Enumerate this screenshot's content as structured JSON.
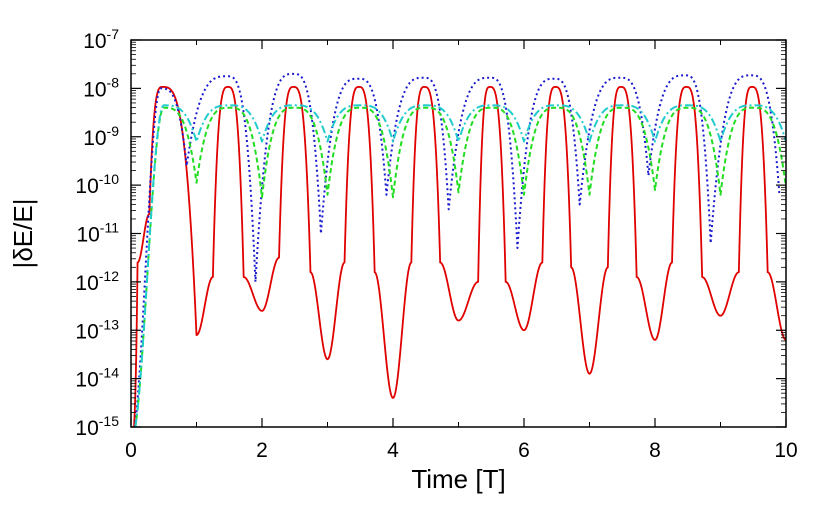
{
  "chart_data": {
    "type": "line",
    "title": "",
    "xlabel": "Time [T]",
    "ylabel": "|δE/E|",
    "xlim": [
      0,
      10
    ],
    "ylim_log10": [
      -15,
      -7
    ],
    "yscale": "log",
    "grid": false,
    "x_ticks": [
      {
        "value": 0,
        "label": "0"
      },
      {
        "value": 2,
        "label": "2"
      },
      {
        "value": 4,
        "label": "4"
      },
      {
        "value": 6,
        "label": "6"
      },
      {
        "value": 8,
        "label": "8"
      },
      {
        "value": 10,
        "label": "10"
      }
    ],
    "y_ticks": [
      {
        "exp": -7,
        "base": "10",
        "sup": "-7"
      },
      {
        "exp": -8,
        "base": "10",
        "sup": "-8"
      },
      {
        "exp": -9,
        "base": "10",
        "sup": "-9"
      },
      {
        "exp": -10,
        "base": "10",
        "sup": "-10"
      },
      {
        "exp": -11,
        "base": "10",
        "sup": "-11"
      },
      {
        "exp": -12,
        "base": "10",
        "sup": "-12"
      },
      {
        "exp": -13,
        "base": "10",
        "sup": "-13"
      },
      {
        "exp": -14,
        "base": "10",
        "sup": "-14"
      },
      {
        "exp": -15,
        "base": "10",
        "sup": "-15"
      }
    ],
    "series": [
      {
        "name": "series-1-red-solid",
        "color": "#e00000",
        "dash": "",
        "note": "peaks ~1e-8 at t=k+0.5; sharp dips at integer t",
        "peak_times": [
          0.48,
          1.48,
          2.48,
          3.48,
          4.48,
          5.48,
          6.48,
          7.48,
          8.48,
          9.48
        ],
        "peak_log10": [
          -7.97,
          -7.97,
          -7.97,
          -7.97,
          -7.97,
          -7.97,
          -7.97,
          -7.97,
          -7.97,
          -7.97
        ],
        "dip_times": [
          1.0,
          2.0,
          3.0,
          4.0,
          5.0,
          6.0,
          7.0,
          8.0,
          9.0,
          10.0
        ],
        "dip_log10": [
          -13.1,
          -12.6,
          -13.6,
          -14.4,
          -12.8,
          -13.0,
          -13.9,
          -13.2,
          -12.7,
          -13.2
        ],
        "shoulder_dip_times": [
          0.1,
          0.28,
          1.25,
          1.72,
          2.26,
          2.74,
          3.26,
          3.72,
          4.28,
          4.72,
          5.3,
          5.72,
          6.28,
          6.72,
          7.28,
          7.72,
          8.26,
          8.72,
          9.28,
          9.72
        ],
        "shoulder_dip_log10": [
          -11.6,
          -10.6,
          -11.9,
          -11.9,
          -11.5,
          -11.8,
          -11.6,
          -11.8,
          -11.6,
          -11.6,
          -12.0,
          -12.0,
          -11.6,
          -11.7,
          -11.7,
          -11.9,
          -11.6,
          -11.9,
          -11.8,
          -11.8
        ]
      },
      {
        "name": "series-2-blue-dotted",
        "color": "#1a1ad0",
        "dash": "2 3",
        "note": "sharp peaks ~1.7e-8 at integer t + 0.5 region; noisy dips",
        "peak_times": [
          0.45,
          1.47,
          2.48,
          3.47,
          4.47,
          5.48,
          6.46,
          7.47,
          8.46,
          9.47
        ],
        "peak_log10": [
          -8.0,
          -7.75,
          -7.7,
          -7.8,
          -7.78,
          -7.78,
          -7.8,
          -7.78,
          -7.73,
          -7.73
        ],
        "dip_times": [
          0.85,
          1.9,
          2.9,
          3.9,
          4.85,
          5.9,
          6.85,
          7.9,
          8.85,
          9.9
        ],
        "dip_log10": [
          -9.6,
          -12.0,
          -11.0,
          -10.2,
          -10.5,
          -11.3,
          -10.4,
          -9.8,
          -11.2,
          -10.2
        ]
      },
      {
        "name": "series-3-green-dashed",
        "color": "#22dd22",
        "dash": "5 3",
        "note": "smooth oscillation, peaks ~4e-9, troughs ~1e-10",
        "peak_times": [
          0.5,
          1.5,
          2.5,
          3.5,
          4.5,
          5.5,
          6.5,
          7.5,
          8.5,
          9.5
        ],
        "peak_log10": [
          -8.4,
          -8.4,
          -8.4,
          -8.4,
          -8.4,
          -8.4,
          -8.4,
          -8.4,
          -8.4,
          -8.4
        ],
        "dip_times": [
          1.0,
          2.0,
          3.0,
          4.0,
          5.0,
          6.0,
          7.0,
          8.0,
          9.0,
          10.0
        ],
        "dip_log10": [
          -9.95,
          -10.25,
          -10.2,
          -10.25,
          -10.15,
          -10.2,
          -10.2,
          -10.1,
          -10.2,
          -10.05
        ]
      },
      {
        "name": "series-4-cyan-dashdot",
        "color": "#22cccc",
        "dash": "8 3 2 3",
        "note": "smooth oscillation, peaks ~4.5e-9, troughs ~8e-10",
        "peak_times": [
          0.5,
          1.5,
          2.5,
          3.5,
          4.5,
          5.5,
          6.5,
          7.5,
          8.5,
          9.5
        ],
        "peak_log10": [
          -8.35,
          -8.35,
          -8.35,
          -8.35,
          -8.35,
          -8.35,
          -8.35,
          -8.35,
          -8.35,
          -8.35
        ],
        "dip_times": [
          1.0,
          2.0,
          3.0,
          4.0,
          5.0,
          6.0,
          7.0,
          8.0,
          9.0,
          10.0
        ],
        "dip_log10": [
          -9.1,
          -9.1,
          -9.1,
          -9.1,
          -9.1,
          -9.1,
          -9.1,
          -9.1,
          -9.1,
          -9.1
        ]
      }
    ]
  }
}
